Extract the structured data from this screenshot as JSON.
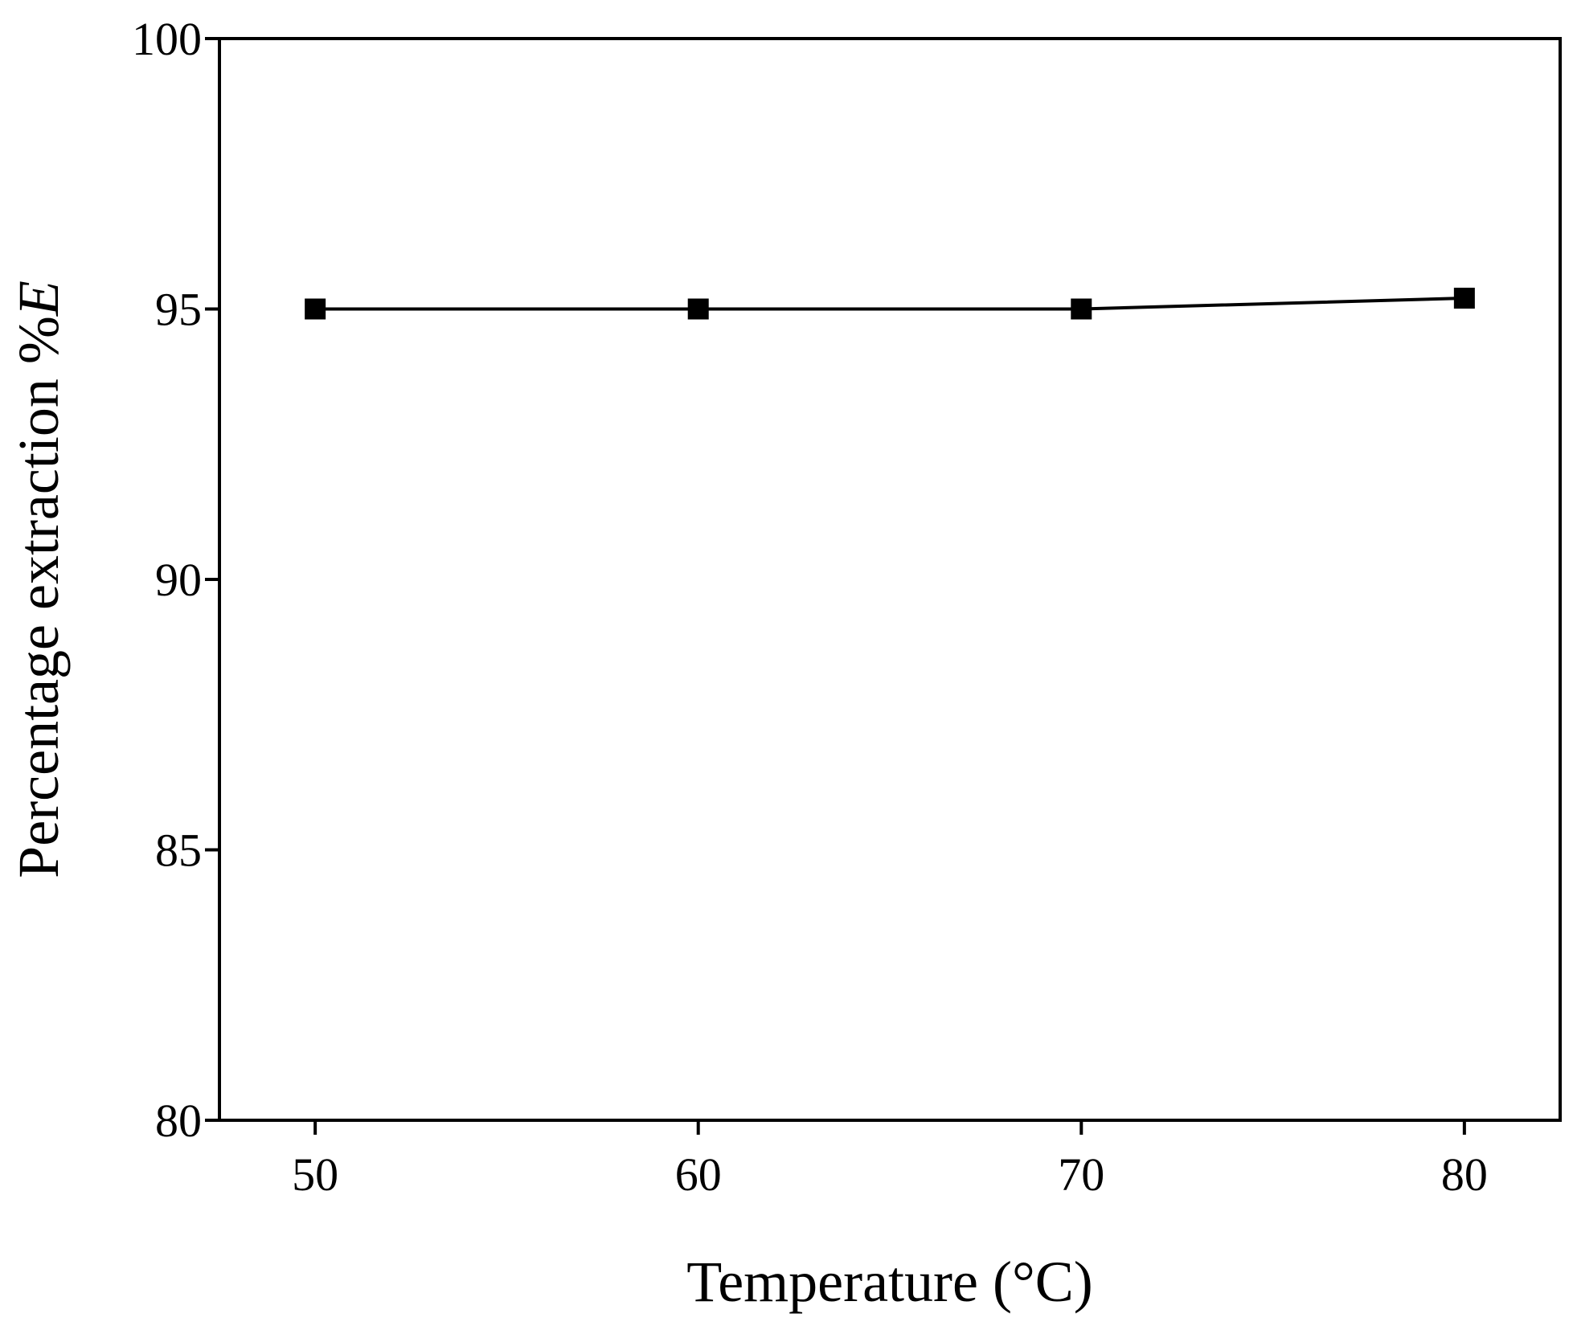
{
  "chart_data": {
    "type": "line",
    "title": "",
    "xlabel": "Temperature (°C)",
    "ylabel_main": "Percentage extraction %",
    "ylabel_italic": "E",
    "x": [
      50,
      60,
      70,
      80
    ],
    "series": [
      {
        "values": [
          95.0,
          95.0,
          95.0,
          95.2
        ],
        "marker": "square",
        "color": "#000000"
      }
    ],
    "xlim": [
      47.5,
      82.5
    ],
    "ylim": [
      80,
      100
    ],
    "x_ticks": [
      50,
      60,
      70,
      80
    ],
    "x_tick_labels": [
      "50",
      "60",
      "70",
      "80"
    ],
    "y_ticks": [
      80,
      85,
      90,
      95,
      100
    ],
    "y_tick_labels": [
      "80",
      "85",
      "90",
      "95",
      "100"
    ],
    "grid": false,
    "legend": "none"
  }
}
